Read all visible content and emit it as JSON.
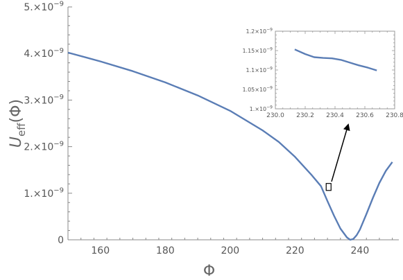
{
  "chart_data": [
    {
      "id": "main",
      "type": "line",
      "xlabel": "Φ",
      "ylabel_main": "U",
      "ylabel_sub": "eff",
      "ylabel_arg": "(Φ)",
      "xlim": [
        150,
        252
      ],
      "ylim": [
        0,
        5e-09
      ],
      "xticks": [
        160,
        180,
        200,
        220,
        240
      ],
      "xtick_labels": [
        "160",
        "180",
        "200",
        "220",
        "240"
      ],
      "yticks": [
        0,
        1e-09,
        2e-09,
        3e-09,
        4e-09,
        5e-09
      ],
      "ytick_labels": [
        {
          "mant": "0",
          "exp": ""
        },
        {
          "mant": "1.×10",
          "exp": "−9"
        },
        {
          "mant": "2.×10",
          "exp": "−9"
        },
        {
          "mant": "3.×10",
          "exp": "−9"
        },
        {
          "mant": "4.×10",
          "exp": "−9"
        },
        {
          "mant": "5.×10",
          "exp": "−9"
        }
      ],
      "color": "#5a7db5",
      "grid": false,
      "series": [
        {
          "x": [
            150,
            160,
            170,
            180,
            190,
            200,
            210,
            215,
            220,
            225,
            228,
            230,
            232,
            234,
            236,
            237,
            238,
            239,
            240,
            242,
            244,
            246,
            248,
            250
          ],
          "y": [
            4.02e-09,
            3.83e-09,
            3.62e-09,
            3.38e-09,
            3.1e-09,
            2.77e-09,
            2.35e-09,
            2.1e-09,
            1.78e-09,
            1.4e-09,
            1.15e-09,
            8.3e-10,
            5.2e-10,
            2.4e-10,
            5e-11,
            0.0,
            2e-11,
            1e-10,
            2.2e-10,
            5.5e-10,
            9e-10,
            1.22e-09,
            1.48e-09,
            1.67e-09
          ]
        }
      ],
      "highlight_box": {
        "x": [
          229.6,
          231.1
        ],
        "y": [
          1.06e-09,
          1.21e-09
        ]
      }
    },
    {
      "id": "inset",
      "type": "line",
      "xlim": [
        230.0,
        230.8
      ],
      "ylim": [
        1e-09,
        1.2e-09
      ],
      "xticks": [
        230.0,
        230.2,
        230.4,
        230.6,
        230.8
      ],
      "xtick_labels": [
        "230.0",
        "230.2",
        "230.4",
        "230.6",
        "230.8"
      ],
      "yticks": [
        1e-09,
        1.05e-09,
        1.1e-09,
        1.15e-09,
        1.2e-09
      ],
      "ytick_labels": [
        {
          "mant": "1.×10",
          "exp": "−9"
        },
        {
          "mant": "1.05×10",
          "exp": "−9"
        },
        {
          "mant": "1.1×10",
          "exp": "−9"
        },
        {
          "mant": "1.15×10",
          "exp": "−9"
        },
        {
          "mant": "1.2×10",
          "exp": "−9"
        }
      ],
      "color": "#5a7db5",
      "grid": false,
      "series": [
        {
          "x": [
            230.13,
            230.2,
            230.26,
            230.32,
            230.38,
            230.44,
            230.5,
            230.56,
            230.62,
            230.68
          ],
          "y": [
            1.153e-09,
            1.141e-09,
            1.133e-09,
            1.131e-09,
            1.13e-09,
            1.126e-09,
            1.119e-09,
            1.112e-09,
            1.106e-09,
            1.099e-09
          ]
        }
      ]
    }
  ]
}
